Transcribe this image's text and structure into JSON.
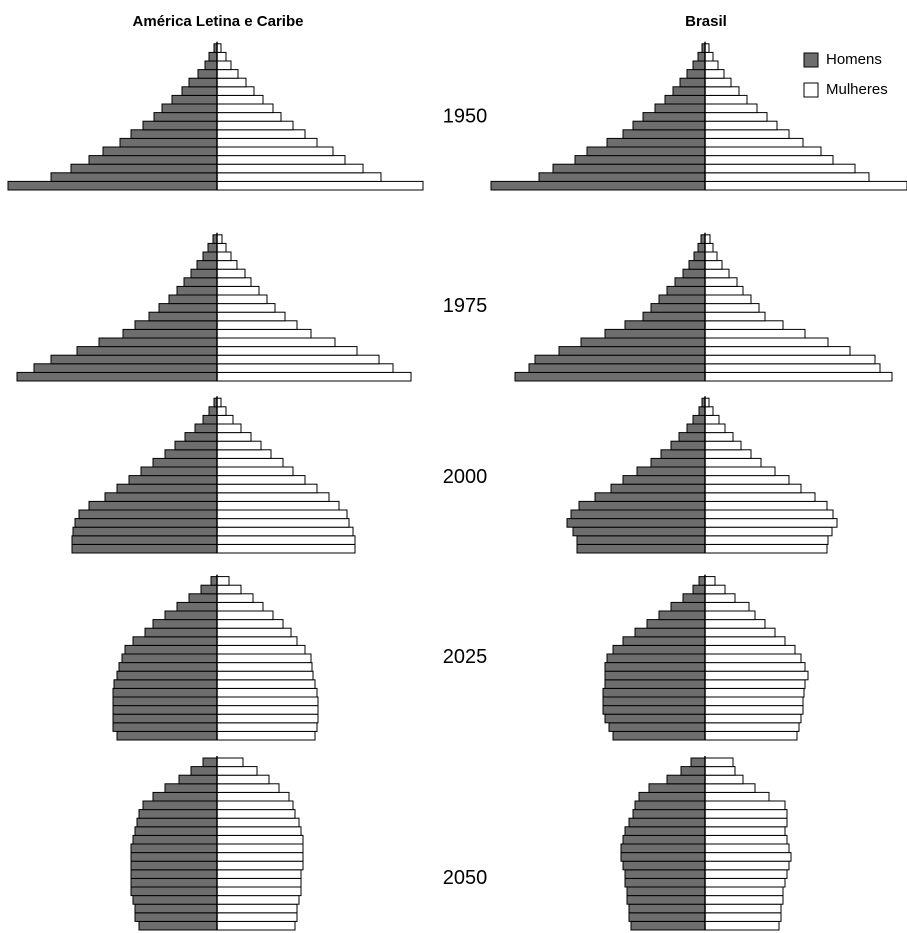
{
  "chart_data": {
    "type": "pyramid",
    "columns": [
      "América Letina e Caribe",
      "Brasil"
    ],
    "years": [
      "1950",
      "1975",
      "2000",
      "2025",
      "2050"
    ],
    "series": [
      {
        "name": "Homens",
        "color": "#6e6e6e"
      },
      {
        "name": "Mulheres",
        "color": "#ffffff"
      }
    ],
    "panels": [
      [
        {
          "men": [
            209,
            166,
            146,
            128,
            114,
            97,
            86,
            74,
            63,
            55,
            45,
            35,
            28,
            19,
            12,
            8,
            3
          ],
          "women": [
            206,
            164,
            146,
            128,
            116,
            100,
            88,
            76,
            64,
            56,
            46,
            37,
            29,
            21,
            14,
            9,
            4
          ]
        },
        {
          "men": [
            200,
            183,
            166,
            140,
            118,
            94,
            82,
            68,
            58,
            48,
            40,
            33,
            26,
            20,
            14,
            9,
            4
          ],
          "women": [
            194,
            176,
            162,
            140,
            118,
            94,
            80,
            68,
            58,
            50,
            42,
            34,
            28,
            20,
            14,
            9,
            5
          ]
        },
        {
          "men": [
            145,
            145,
            144,
            142,
            138,
            128,
            112,
            100,
            88,
            76,
            64,
            52,
            42,
            32,
            22,
            14,
            8,
            3
          ],
          "women": [
            138,
            138,
            136,
            132,
            130,
            122,
            112,
            100,
            88,
            76,
            66,
            54,
            44,
            34,
            24,
            16,
            9,
            4
          ]
        },
        {
          "men": [
            100,
            104,
            104,
            104,
            104,
            104,
            103,
            100,
            98,
            95,
            92,
            84,
            72,
            64,
            52,
            40,
            28,
            16,
            6
          ],
          "women": [
            98,
            100,
            101,
            101,
            101,
            100,
            98,
            96,
            95,
            94,
            88,
            80,
            74,
            66,
            56,
            46,
            36,
            24,
            12
          ]
        },
        {
          "men": [
            78,
            82,
            82,
            84,
            86,
            86,
            86,
            86,
            86,
            86,
            84,
            82,
            80,
            78,
            74,
            64,
            52,
            38,
            26,
            14
          ],
          "women": [
            78,
            80,
            80,
            82,
            84,
            84,
            84,
            86,
            86,
            86,
            86,
            84,
            82,
            78,
            76,
            72,
            62,
            52,
            40,
            26
          ]
        }
      ],
      [
        {
          "men": [
            214,
            166,
            152,
            130,
            118,
            98,
            82,
            72,
            62,
            50,
            40,
            32,
            25,
            18,
            12,
            7,
            3
          ],
          "women": [
            202,
            164,
            150,
            128,
            116,
            98,
            84,
            72,
            62,
            52,
            42,
            34,
            26,
            19,
            13,
            8,
            4
          ]
        },
        {
          "men": [
            190,
            176,
            170,
            146,
            124,
            100,
            80,
            62,
            54,
            46,
            38,
            30,
            22,
            16,
            11,
            7,
            4
          ],
          "women": [
            187,
            175,
            170,
            145,
            123,
            100,
            78,
            60,
            54,
            46,
            38,
            32,
            24,
            17,
            12,
            8,
            5
          ]
        },
        {
          "men": [
            128,
            128,
            132,
            138,
            134,
            126,
            110,
            94,
            82,
            68,
            54,
            44,
            34,
            26,
            18,
            12,
            6,
            3
          ],
          "women": [
            122,
            123,
            127,
            132,
            128,
            122,
            110,
            96,
            84,
            70,
            56,
            46,
            36,
            28,
            20,
            14,
            8,
            4
          ]
        },
        {
          "men": [
            92,
            96,
            100,
            102,
            102,
            102,
            100,
            100,
            100,
            98,
            92,
            82,
            70,
            58,
            46,
            34,
            22,
            12,
            6
          ],
          "women": [
            92,
            94,
            96,
            98,
            98,
            99,
            100,
            103,
            100,
            96,
            90,
            80,
            70,
            60,
            50,
            44,
            30,
            20,
            10
          ]
        },
        {
          "men": [
            74,
            76,
            76,
            78,
            78,
            80,
            80,
            82,
            84,
            84,
            82,
            80,
            76,
            72,
            70,
            66,
            56,
            38,
            24,
            14
          ],
          "women": [
            74,
            76,
            76,
            78,
            78,
            80,
            82,
            84,
            86,
            84,
            82,
            80,
            82,
            82,
            80,
            64,
            50,
            38,
            30,
            28
          ]
        }
      ]
    ]
  }
}
